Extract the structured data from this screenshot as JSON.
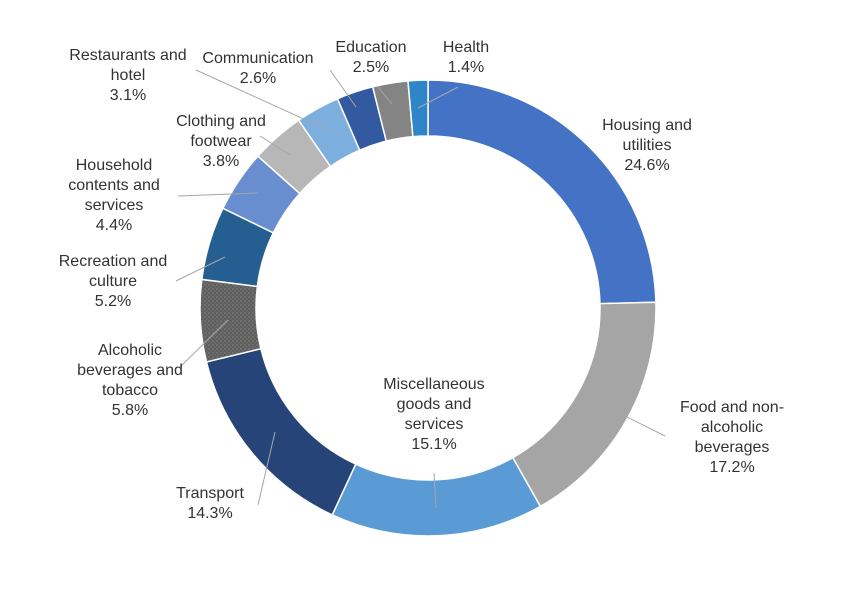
{
  "chart_data": {
    "type": "pie",
    "variant": "donut",
    "title": "",
    "legend": "none",
    "slices": [
      {
        "label": "Housing and utilities",
        "value": 24.6,
        "display": "24.6%",
        "color": "#4472C4",
        "label_lines": [
          "Housing and",
          "utilities",
          "24.6%"
        ]
      },
      {
        "label": "Food and non-alcoholic beverages",
        "value": 17.2,
        "display": "17.2%",
        "color": "#A5A5A5",
        "label_lines": [
          "Food and non-",
          "alcoholic",
          "beverages",
          "17.2%"
        ]
      },
      {
        "label": "Miscellaneous goods and services",
        "value": 15.1,
        "display": "15.1%",
        "color": "#5B9BD5",
        "label_lines": [
          "Miscellaneous",
          "goods and",
          "services",
          "15.1%"
        ]
      },
      {
        "label": "Transport",
        "value": 14.3,
        "display": "14.3%",
        "color": "#264478",
        "label_lines": [
          "Transport",
          "14.3%"
        ]
      },
      {
        "label": "Alcoholic beverages and tobacco",
        "value": 5.8,
        "display": "5.8%",
        "color": "#636363",
        "label_lines": [
          "Alcoholic",
          "beverages and",
          "tobacco",
          "5.8%"
        ]
      },
      {
        "label": "Recreation and culture",
        "value": 5.2,
        "display": "5.2%",
        "color": "#255E91",
        "label_lines": [
          "Recreation and",
          "culture",
          "5.2%"
        ]
      },
      {
        "label": "Household contents and services",
        "value": 4.4,
        "display": "4.4%",
        "color": "#698ED0",
        "label_lines": [
          "Household",
          "contents and",
          "services",
          "4.4%"
        ]
      },
      {
        "label": "Clothing and footwear",
        "value": 3.8,
        "display": "3.8%",
        "color": "#B7B7B7",
        "label_lines": [
          "Clothing and",
          "footwear",
          "3.8%"
        ]
      },
      {
        "label": "Restaurants and hotel",
        "value": 3.1,
        "display": "3.1%",
        "color": "#7CAFDD",
        "label_lines": [
          "Restaurants and",
          "hotel",
          "3.1%"
        ]
      },
      {
        "label": "Communication",
        "value": 2.6,
        "display": "2.6%",
        "color": "#335AA1",
        "label_lines": [
          "Communication",
          "2.6%"
        ]
      },
      {
        "label": "Education",
        "value": 2.5,
        "display": "2.5%",
        "color": "#848484",
        "label_lines": [
          "Education",
          "2.5%"
        ]
      },
      {
        "label": "Health",
        "value": 1.4,
        "display": "1.4%",
        "color": "#2E86C8",
        "label_lines": [
          "Health",
          "1.4%"
        ]
      }
    ]
  }
}
